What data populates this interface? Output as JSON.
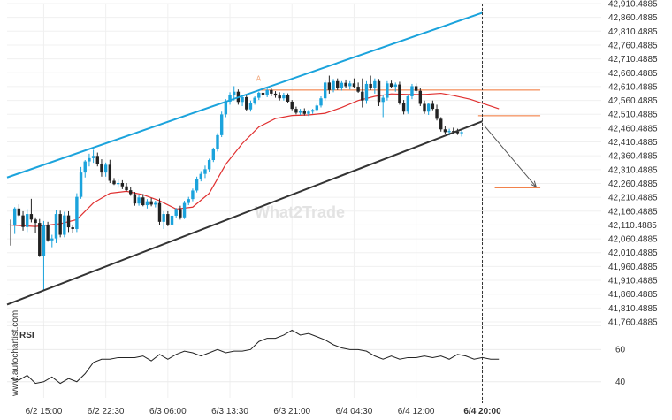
{
  "side_credit": "www.autochartist.com",
  "watermark": "What2Trade",
  "chart_data": {
    "type": "candlestick",
    "ylim": [
      41760.4885,
      42910.4885
    ],
    "yticks": [
      "42,910.4885",
      "42,860.4885",
      "42,810.4885",
      "42,760.4885",
      "42,710.4885",
      "42,660.4885",
      "42,610.4885",
      "42,560.4885",
      "42,510.4885",
      "42,460.4885",
      "42,410.4885",
      "42,360.4885",
      "42,310.4885",
      "42,260.4885",
      "42,210.4885",
      "42,160.4885",
      "42,110.4885",
      "42,060.4885",
      "42,010.4885",
      "41,960.4885",
      "41,910.4885",
      "41,860.4885",
      "41,810.4885",
      "41,760.4885"
    ],
    "ytick_values": [
      42910.4885,
      42860.4885,
      42810.4885,
      42760.4885,
      42710.4885,
      42660.4885,
      42610.4885,
      42560.4885,
      42510.4885,
      42460.4885,
      42410.4885,
      42360.4885,
      42310.4885,
      42260.4885,
      42210.4885,
      42160.4885,
      42110.4885,
      42060.4885,
      42010.4885,
      41960.4885,
      41910.4885,
      41860.4885,
      41810.4885,
      41760.4885
    ],
    "xticks": [
      {
        "label": "6/2 15:00",
        "index": 8,
        "bold": false
      },
      {
        "label": "6/2 22:30",
        "index": 23,
        "bold": false
      },
      {
        "label": "6/3 06:00",
        "index": 38,
        "bold": false
      },
      {
        "label": "6/3 13:30",
        "index": 53,
        "bold": false
      },
      {
        "label": "6/3 21:00",
        "index": 68,
        "bold": false
      },
      {
        "label": "6/4 04:30",
        "index": 83,
        "bold": false
      },
      {
        "label": "6/4 12:00",
        "index": 98,
        "bold": false
      },
      {
        "label": "6/4 20:00",
        "index": 114,
        "bold": true
      }
    ],
    "forecast_index": 114,
    "candles": [
      [
        42112,
        42130,
        42036,
        42110
      ],
      [
        42110,
        42175,
        42078,
        42170
      ],
      [
        42170,
        42185,
        42140,
        42145
      ],
      [
        42145,
        42160,
        42090,
        42103
      ],
      [
        42103,
        42168,
        42085,
        42150
      ],
      [
        42150,
        42205,
        42120,
        42130
      ],
      [
        42130,
        42138,
        42080,
        42118
      ],
      [
        42118,
        42132,
        41995,
        42000
      ],
      [
        42000,
        42125,
        41872,
        42110
      ],
      [
        42110,
        42122,
        42050,
        42055
      ],
      [
        42055,
        42075,
        42030,
        42062
      ],
      [
        42062,
        42165,
        42045,
        42150
      ],
      [
        42150,
        42162,
        42066,
        42075
      ],
      [
        42075,
        42158,
        42066,
        42145
      ],
      [
        42145,
        42160,
        42085,
        42102
      ],
      [
        42102,
        42112,
        42080,
        42096
      ],
      [
        42096,
        42225,
        42085,
        42212
      ],
      [
        42212,
        42320,
        42205,
        42300
      ],
      [
        42300,
        42345,
        42282,
        42340
      ],
      [
        42340,
        42368,
        42322,
        42352
      ],
      [
        42352,
        42382,
        42335,
        42360
      ],
      [
        42360,
        42372,
        42322,
        42332
      ],
      [
        42332,
        42348,
        42285,
        42300
      ],
      [
        42300,
        42336,
        42285,
        42328
      ],
      [
        42328,
        42346,
        42262,
        42270
      ],
      [
        42270,
        42280,
        42255,
        42258
      ],
      [
        42258,
        42274,
        42245,
        42262
      ],
      [
        42262,
        42272,
        42240,
        42250
      ],
      [
        42250,
        42262,
        42232,
        42236
      ],
      [
        42236,
        42248,
        42216,
        42222
      ],
      [
        42222,
        42230,
        42180,
        42188
      ],
      [
        42188,
        42218,
        42180,
        42210
      ],
      [
        42210,
        42222,
        42178,
        42182
      ],
      [
        42182,
        42204,
        42170,
        42196
      ],
      [
        42196,
        42208,
        42178,
        42184
      ],
      [
        42184,
        42198,
        42174,
        42190
      ],
      [
        42190,
        42206,
        42110,
        42122
      ],
      [
        42122,
        42160,
        42096,
        42150
      ],
      [
        42150,
        42160,
        42106,
        42112
      ],
      [
        42112,
        42150,
        42106,
        42144
      ],
      [
        42144,
        42172,
        42136,
        42168
      ],
      [
        42168,
        42180,
        42130,
        42138
      ],
      [
        42138,
        42198,
        42132,
        42190
      ],
      [
        42190,
        42212,
        42182,
        42204
      ],
      [
        42204,
        42242,
        42196,
        42235
      ],
      [
        42235,
        42285,
        42228,
        42275
      ],
      [
        42275,
        42305,
        42268,
        42295
      ],
      [
        42295,
        42325,
        42280,
        42312
      ],
      [
        42312,
        42350,
        42302,
        42345
      ],
      [
        42345,
        42390,
        42338,
        42384
      ],
      [
        42384,
        42442,
        42376,
        42435
      ],
      [
        42435,
        42520,
        42428,
        42510
      ],
      [
        42510,
        42565,
        42500,
        42556
      ],
      [
        42556,
        42590,
        42545,
        42580
      ],
      [
        42580,
        42612,
        42560,
        42592
      ],
      [
        42592,
        42600,
        42545,
        42555
      ],
      [
        42555,
        42580,
        42540,
        42572
      ],
      [
        42572,
        42582,
        42522,
        42528
      ],
      [
        42528,
        42560,
        42520,
        42552
      ],
      [
        42552,
        42575,
        42545,
        42570
      ],
      [
        42570,
        42592,
        42562,
        42588
      ],
      [
        42588,
        42600,
        42568,
        42580
      ],
      [
        42580,
        42606,
        42572,
        42598
      ],
      [
        42598,
        42606,
        42575,
        42585
      ],
      [
        42585,
        42594,
        42570,
        42578
      ],
      [
        42578,
        42590,
        42560,
        42568
      ],
      [
        42568,
        42588,
        42560,
        42580
      ],
      [
        42580,
        42586,
        42550,
        42556
      ],
      [
        42556,
        42562,
        42525,
        42530
      ],
      [
        42530,
        42538,
        42510,
        42516
      ],
      [
        42516,
        42530,
        42508,
        42524
      ],
      [
        42524,
        42532,
        42506,
        42512
      ],
      [
        42512,
        42526,
        42504,
        42520
      ],
      [
        42520,
        42530,
        42512,
        42526
      ],
      [
        42526,
        42548,
        42520,
        42542
      ],
      [
        42542,
        42575,
        42535,
        42568
      ],
      [
        42568,
        42632,
        42560,
        42625
      ],
      [
        42625,
        42650,
        42585,
        42598
      ],
      [
        42598,
        42638,
        42590,
        42630
      ],
      [
        42630,
        42640,
        42598,
        42605
      ],
      [
        42605,
        42630,
        42596,
        42624
      ],
      [
        42624,
        42636,
        42606,
        42612
      ],
      [
        42612,
        42630,
        42600,
        42622
      ],
      [
        42622,
        42640,
        42604,
        42610
      ],
      [
        42610,
        42625,
        42588,
        42592
      ],
      [
        42592,
        42640,
        42535,
        42560
      ],
      [
        42560,
        42630,
        42548,
        42620
      ],
      [
        42620,
        42650,
        42598,
        42605
      ],
      [
        42605,
        42640,
        42585,
        42630
      ],
      [
        42630,
        42638,
        42540,
        42555
      ],
      [
        42555,
        42580,
        42500,
        42570
      ],
      [
        42570,
        42630,
        42560,
        42622
      ],
      [
        42622,
        42632,
        42605,
        42610
      ],
      [
        42610,
        42625,
        42592,
        42618
      ],
      [
        42618,
        42628,
        42545,
        42552
      ],
      [
        42552,
        42562,
        42510,
        42520
      ],
      [
        42520,
        42582,
        42512,
        42575
      ],
      [
        42575,
        42620,
        42565,
        42612
      ],
      [
        42612,
        42622,
        42588,
        42595
      ],
      [
        42595,
        42606,
        42540,
        42548
      ],
      [
        42548,
        42560,
        42512,
        42520
      ],
      [
        42520,
        42552,
        42508,
        42548
      ],
      [
        42548,
        42560,
        42525,
        42530
      ],
      [
        42530,
        42545,
        42488,
        42494
      ],
      [
        42494,
        42500,
        42448,
        42456
      ],
      [
        42456,
        42468,
        42438,
        42446
      ],
      [
        42446,
        42458,
        42434,
        42450
      ],
      [
        42450,
        42462,
        42440,
        42448
      ],
      [
        42448,
        42458,
        42436,
        42442
      ],
      [
        42442,
        42452,
        42430,
        42446
      ]
    ],
    "ma_points": [
      [
        0,
        42110
      ],
      [
        6,
        42105
      ],
      [
        12,
        42115
      ],
      [
        16,
        42130
      ],
      [
        20,
        42190
      ],
      [
        24,
        42225
      ],
      [
        28,
        42232
      ],
      [
        32,
        42220
      ],
      [
        36,
        42198
      ],
      [
        40,
        42168
      ],
      [
        44,
        42175
      ],
      [
        48,
        42225
      ],
      [
        52,
        42330
      ],
      [
        56,
        42405
      ],
      [
        60,
        42465
      ],
      [
        64,
        42495
      ],
      [
        68,
        42506
      ],
      [
        72,
        42508
      ],
      [
        76,
        42514
      ],
      [
        80,
        42535
      ],
      [
        84,
        42560
      ],
      [
        88,
        42575
      ],
      [
        92,
        42584
      ],
      [
        96,
        42582
      ],
      [
        100,
        42582
      ],
      [
        104,
        42586
      ],
      [
        107,
        42578
      ],
      [
        111,
        42565
      ],
      [
        114,
        42550
      ],
      [
        118,
        42530
      ]
    ],
    "ma_color": "#e03030",
    "channel_upper": {
      "start": [
        0,
        42282
      ],
      "end": [
        114,
        42877
      ],
      "color": "#1ba3dc"
    },
    "channel_lower": {
      "start": [
        0,
        41823
      ],
      "end": [
        114,
        42485
      ],
      "color": "#333333"
    },
    "resistance_levels": [
      {
        "value": 42598,
        "from_index": 60,
        "to_index": 128
      },
      {
        "value": 42505,
        "from_index": 113,
        "to_index": 128
      }
    ],
    "target_level": {
      "value": 42245,
      "from_index": 117,
      "to_index": 128
    },
    "level_color": "#f07030",
    "projection": {
      "start": [
        114,
        42470
      ],
      "end": [
        127,
        42248
      ]
    },
    "pattern_marker": {
      "label": "A",
      "index": 60,
      "value": 42625
    },
    "rsi": {
      "label": "RSI",
      "ylim": [
        30,
        75
      ],
      "yticks": [
        60,
        40
      ],
      "values": [
        [
          0,
          42
        ],
        [
          2,
          41
        ],
        [
          4,
          44
        ],
        [
          6,
          39
        ],
        [
          8,
          40
        ],
        [
          10,
          43
        ],
        [
          12,
          39
        ],
        [
          14,
          42
        ],
        [
          16,
          40
        ],
        [
          18,
          45
        ],
        [
          20,
          52
        ],
        [
          22,
          54
        ],
        [
          24,
          54
        ],
        [
          26,
          55
        ],
        [
          28,
          55
        ],
        [
          30,
          55
        ],
        [
          32,
          56
        ],
        [
          34,
          53
        ],
        [
          36,
          57
        ],
        [
          38,
          54
        ],
        [
          40,
          57
        ],
        [
          42,
          59
        ],
        [
          44,
          58
        ],
        [
          46,
          56
        ],
        [
          48,
          58
        ],
        [
          50,
          60
        ],
        [
          52,
          58
        ],
        [
          54,
          59
        ],
        [
          56,
          59
        ],
        [
          58,
          60
        ],
        [
          60,
          65
        ],
        [
          62,
          67
        ],
        [
          64,
          67
        ],
        [
          66,
          69
        ],
        [
          68,
          72
        ],
        [
          70,
          69
        ],
        [
          72,
          70
        ],
        [
          74,
          68
        ],
        [
          76,
          66
        ],
        [
          78,
          63
        ],
        [
          80,
          61
        ],
        [
          82,
          60
        ],
        [
          84,
          60
        ],
        [
          86,
          59
        ],
        [
          88,
          56
        ],
        [
          90,
          54
        ],
        [
          92,
          56
        ],
        [
          94,
          54
        ],
        [
          96,
          55
        ],
        [
          98,
          55
        ],
        [
          100,
          56
        ],
        [
          102,
          55
        ],
        [
          104,
          56
        ],
        [
          106,
          54
        ],
        [
          108,
          57
        ],
        [
          110,
          56
        ],
        [
          112,
          54
        ],
        [
          114,
          55
        ],
        [
          116,
          54
        ],
        [
          118,
          54
        ]
      ]
    }
  }
}
